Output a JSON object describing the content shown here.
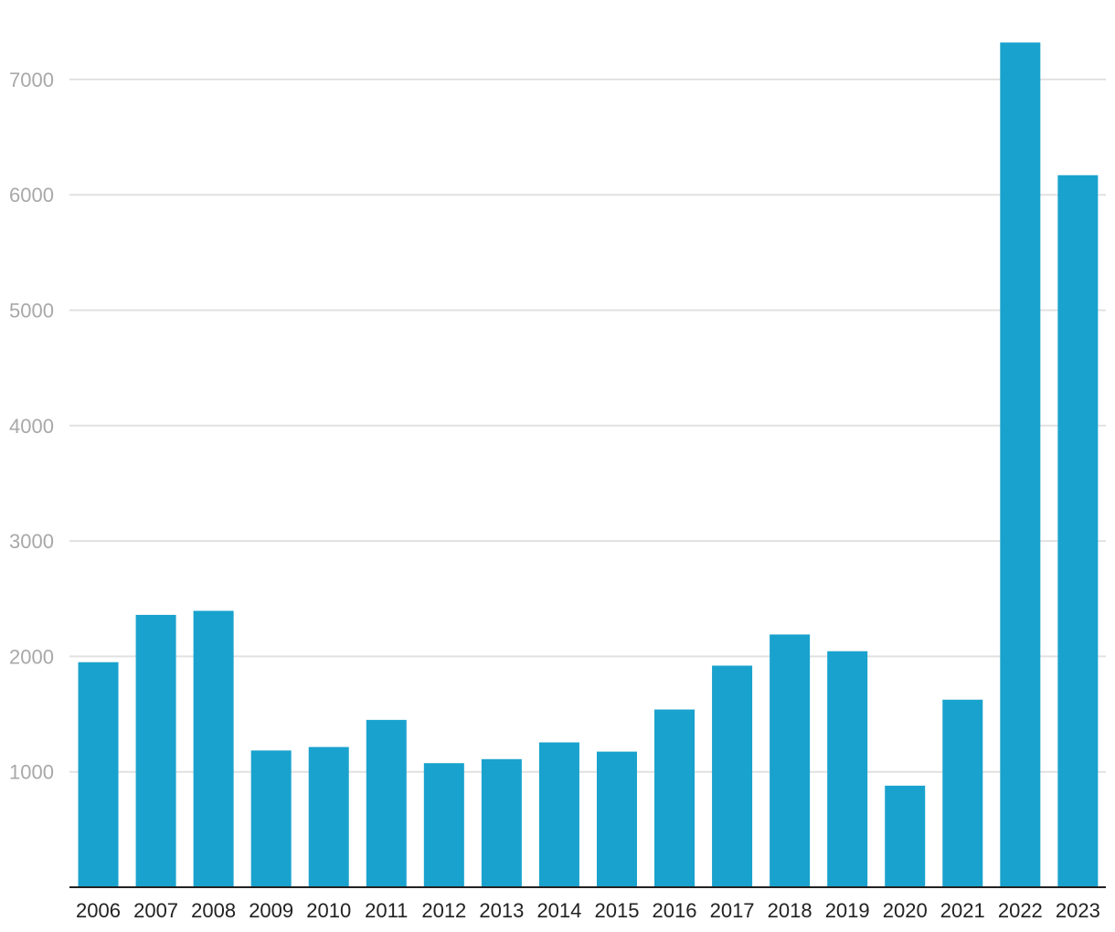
{
  "chart_data": {
    "type": "bar",
    "title": "",
    "xlabel": "",
    "ylabel": "",
    "categories": [
      "2006",
      "2007",
      "2008",
      "2009",
      "2010",
      "2011",
      "2012",
      "2013",
      "2014",
      "2015",
      "2016",
      "2017",
      "2018",
      "2019",
      "2020",
      "2021",
      "2022",
      "2023"
    ],
    "values": [
      1950,
      2360,
      2395,
      1185,
      1215,
      1450,
      1075,
      1110,
      1255,
      1175,
      1540,
      1920,
      2190,
      2045,
      880,
      1625,
      7320,
      6170
    ],
    "ylim": [
      0,
      7320
    ],
    "yticks": [
      1000,
      2000,
      3000,
      4000,
      5000,
      6000,
      7000
    ],
    "grid": true,
    "legend": "none",
    "colors": {
      "bar": "#19a2cd",
      "grid": "#e1e1e1",
      "baseline": "#222222",
      "y_tick_text": "#a8a8a8",
      "x_tick_text": "#222222"
    }
  }
}
